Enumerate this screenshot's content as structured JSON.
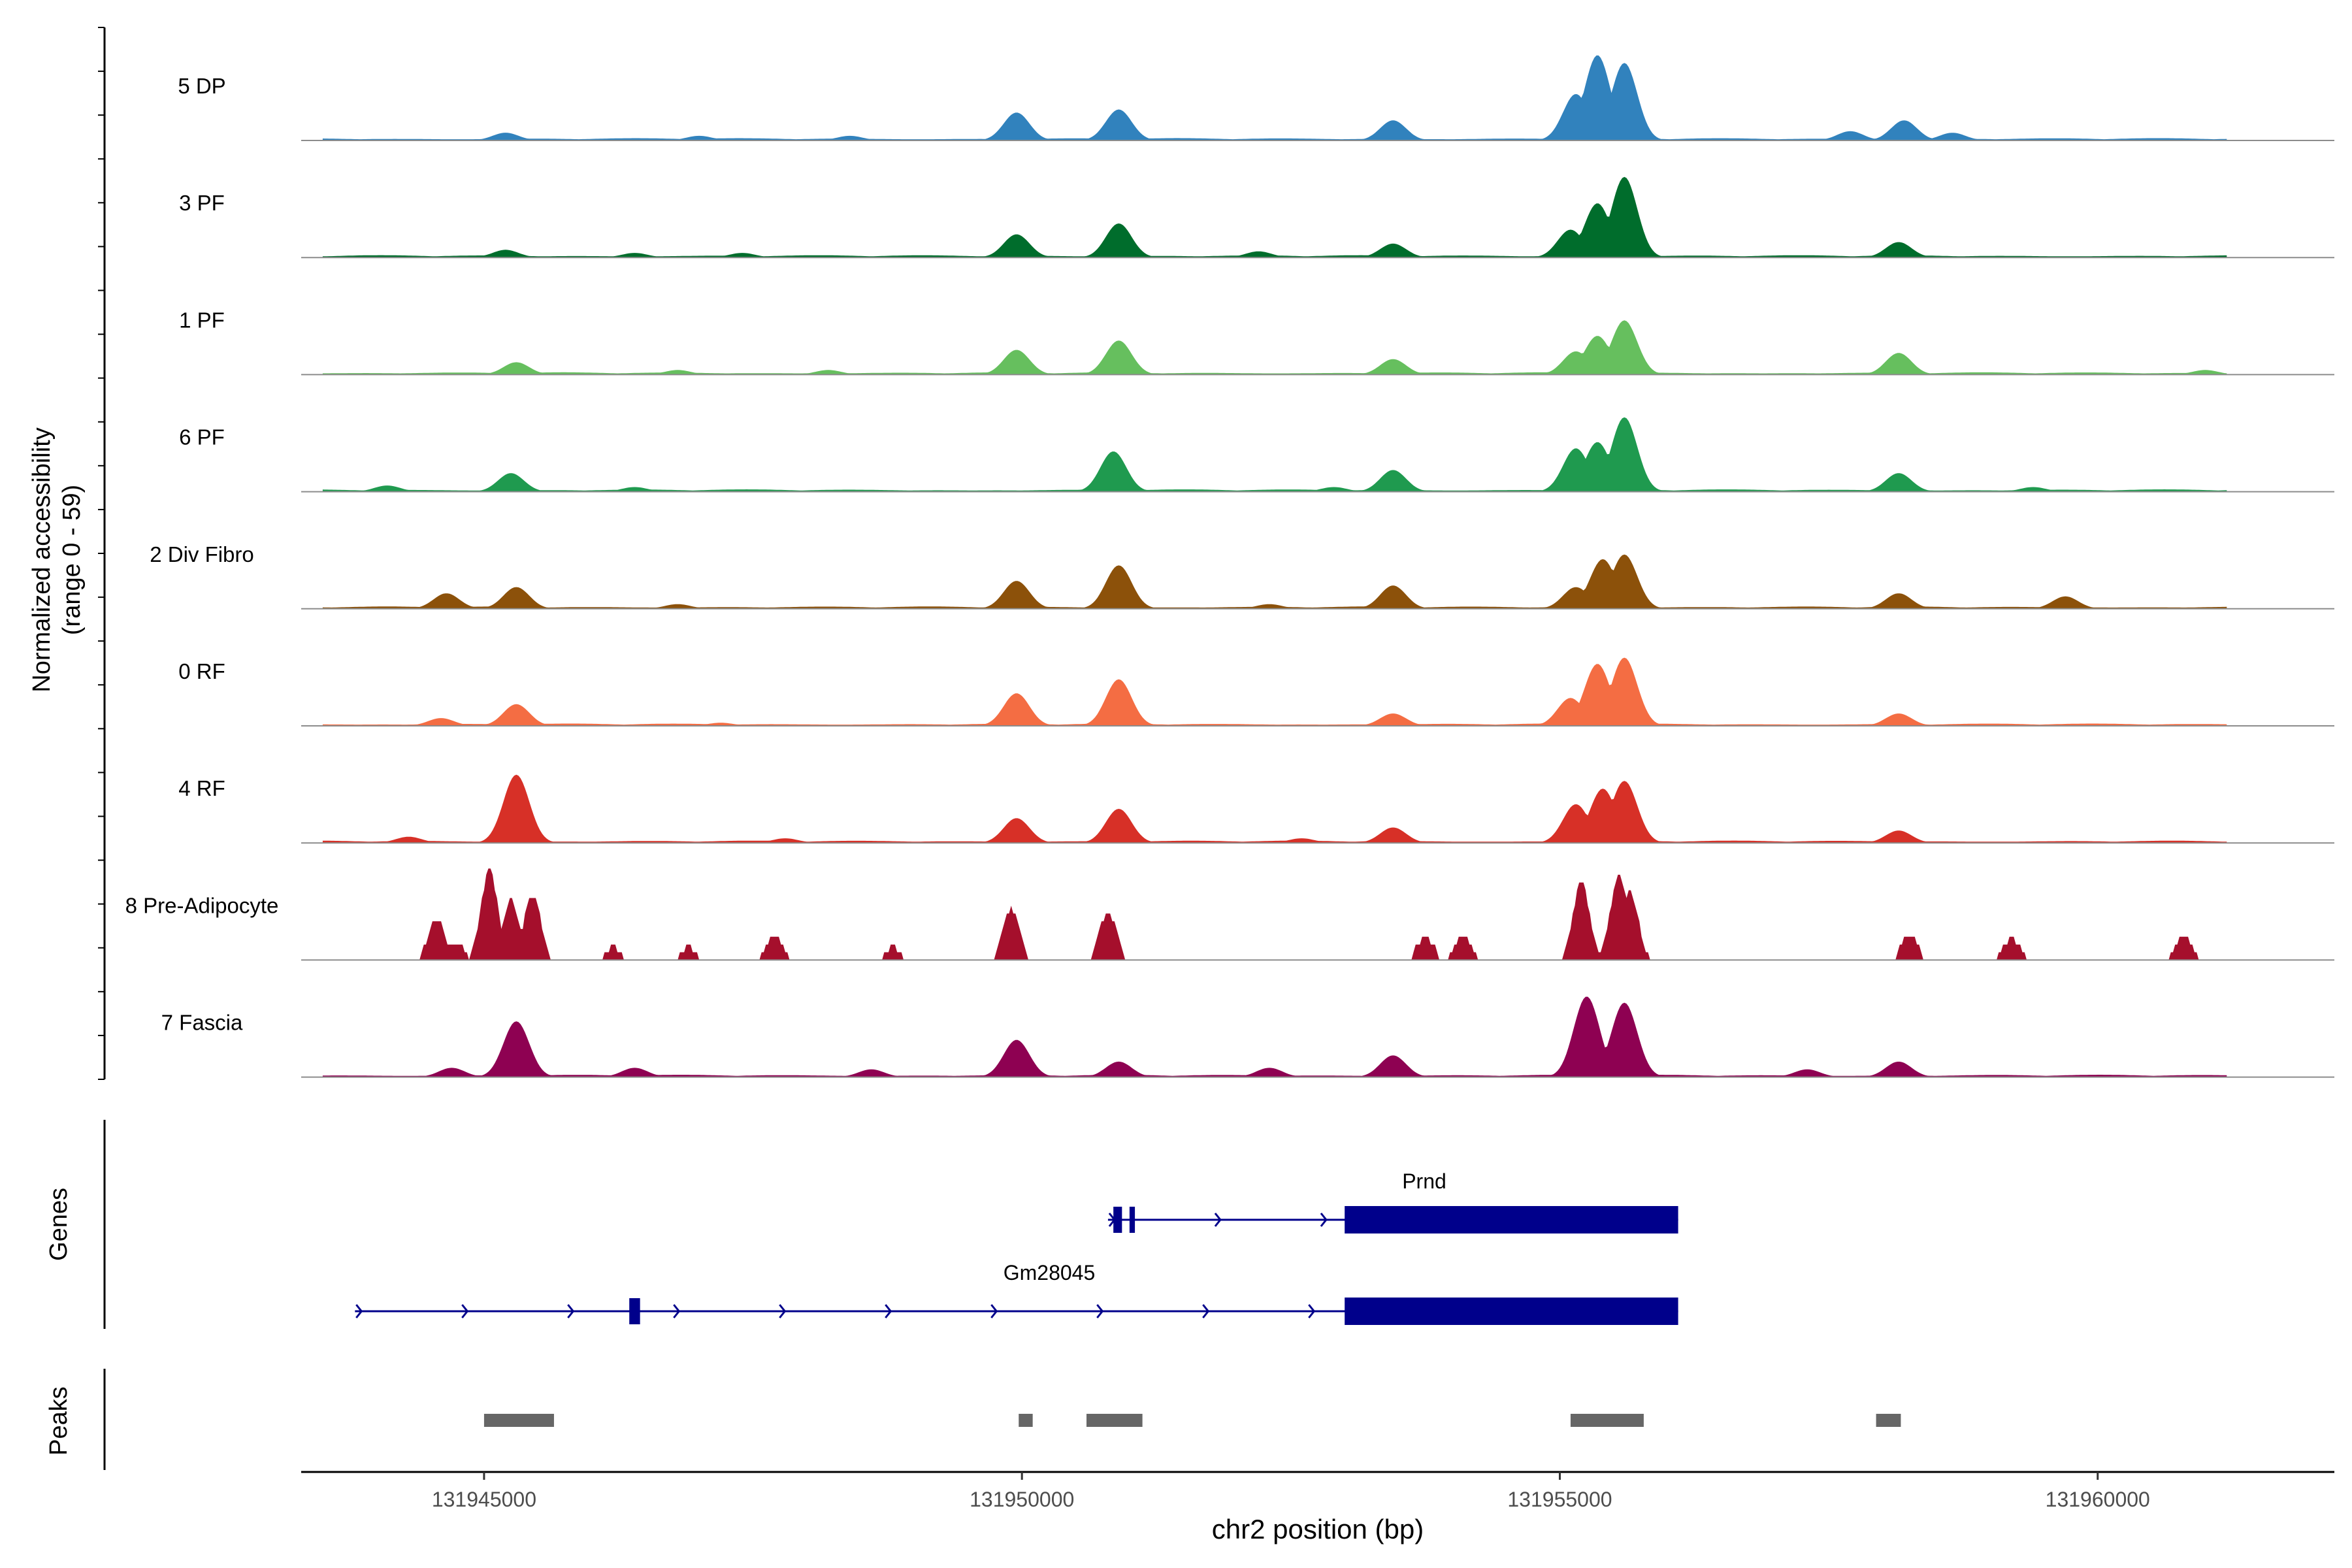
{
  "chart_data": {
    "type": "area",
    "title": "",
    "ylabel_line1": "Normalized accessibility",
    "ylabel_line2": "(range 0 - 59)",
    "xlabel": "chr2 position (bp)",
    "xlim": [
      131943300,
      131962200
    ],
    "ylim": [
      0,
      59
    ],
    "x_ticks": [
      131945000,
      131950000,
      131955000,
      131960000
    ],
    "x_tick_labels": [
      "131945000",
      "131950000",
      "131955000",
      "131960000"
    ],
    "tracks": [
      {
        "name": "5 DP",
        "color": "#3182bd",
        "peaks": [
          [
            131945200,
            5
          ],
          [
            131949950,
            18
          ],
          [
            131950900,
            20
          ],
          [
            131953450,
            13
          ],
          [
            131955150,
            30
          ],
          [
            131955350,
            55
          ],
          [
            131955600,
            50
          ],
          [
            131958200,
            13
          ],
          [
            131957700,
            6
          ],
          [
            131958650,
            5
          ],
          [
            131947000,
            3
          ],
          [
            131948400,
            3
          ]
        ]
      },
      {
        "name": "3 PF",
        "color": "#006d2c",
        "peaks": [
          [
            131945200,
            5
          ],
          [
            131949950,
            15
          ],
          [
            131950900,
            22
          ],
          [
            131953450,
            9
          ],
          [
            131955100,
            18
          ],
          [
            131955350,
            35
          ],
          [
            131955600,
            52
          ],
          [
            131958150,
            10
          ],
          [
            131946400,
            3
          ],
          [
            131947400,
            3
          ],
          [
            131952200,
            4
          ]
        ]
      },
      {
        "name": "1 PF",
        "color": "#66bf5e",
        "peaks": [
          [
            131945300,
            8
          ],
          [
            131949950,
            16
          ],
          [
            131950900,
            22
          ],
          [
            131953450,
            10
          ],
          [
            131955150,
            15
          ],
          [
            131955350,
            25
          ],
          [
            131955600,
            35
          ],
          [
            131958150,
            14
          ],
          [
            131961000,
            3
          ],
          [
            131946800,
            3
          ],
          [
            131948200,
            3
          ]
        ]
      },
      {
        "name": "6 PF",
        "color": "#1f9a4f",
        "peaks": [
          [
            131945250,
            12
          ],
          [
            131950850,
            26
          ],
          [
            131953450,
            14
          ],
          [
            131955150,
            28
          ],
          [
            131955350,
            32
          ],
          [
            131955600,
            48
          ],
          [
            131958150,
            12
          ],
          [
            131944100,
            4
          ],
          [
            131946400,
            3
          ],
          [
            131952900,
            3
          ],
          [
            131959400,
            3
          ]
        ]
      },
      {
        "name": "2 Div Fibro",
        "color": "#8c510a",
        "peaks": [
          [
            131944650,
            10
          ],
          [
            131945300,
            14
          ],
          [
            131949950,
            18
          ],
          [
            131950900,
            28
          ],
          [
            131953450,
            15
          ],
          [
            131955150,
            14
          ],
          [
            131955400,
            32
          ],
          [
            131955600,
            35
          ],
          [
            131958150,
            10
          ],
          [
            131959700,
            8
          ],
          [
            131946800,
            3
          ],
          [
            131952300,
            3
          ]
        ]
      },
      {
        "name": "0 RF",
        "color": "#f46d43",
        "peaks": [
          [
            131945300,
            14
          ],
          [
            131949950,
            21
          ],
          [
            131950900,
            30
          ],
          [
            131953450,
            8
          ],
          [
            131955100,
            18
          ],
          [
            131955350,
            40
          ],
          [
            131955600,
            44
          ],
          [
            131958150,
            8
          ],
          [
            131944600,
            5
          ],
          [
            131947200,
            2
          ]
        ]
      },
      {
        "name": "4 RF",
        "color": "#d73027",
        "peaks": [
          [
            131945300,
            44
          ],
          [
            131949950,
            16
          ],
          [
            131950900,
            22
          ],
          [
            131953450,
            10
          ],
          [
            131955150,
            25
          ],
          [
            131955400,
            35
          ],
          [
            131955600,
            40
          ],
          [
            131958150,
            8
          ],
          [
            131944300,
            4
          ],
          [
            131947800,
            3
          ],
          [
            131952600,
            3
          ]
        ]
      },
      {
        "name": "8 Pre-Adipocyte",
        "color": "#a50f2c",
        "peaks": [
          [
            131944560,
            27
          ],
          [
            131944750,
            10
          ],
          [
            131945050,
            58
          ],
          [
            131945250,
            38
          ],
          [
            131945450,
            42
          ],
          [
            131949900,
            33
          ],
          [
            131950800,
            31
          ],
          [
            131953750,
            15
          ],
          [
            131954100,
            15
          ],
          [
            131955200,
            50
          ],
          [
            131955550,
            55
          ],
          [
            131955650,
            45
          ],
          [
            131958250,
            16
          ],
          [
            131959200,
            14
          ],
          [
            131960800,
            16
          ],
          [
            131946200,
            8
          ],
          [
            131946900,
            8
          ],
          [
            131947700,
            15
          ],
          [
            131948800,
            8
          ]
        ]
      },
      {
        "name": "7 Fascia",
        "color": "#8e0152",
        "peaks": [
          [
            131945300,
            36
          ],
          [
            131949950,
            24
          ],
          [
            131950900,
            10
          ],
          [
            131953450,
            14
          ],
          [
            131955250,
            52
          ],
          [
            131955600,
            48
          ],
          [
            131958150,
            10
          ],
          [
            131944700,
            6
          ],
          [
            131946400,
            6
          ],
          [
            131948600,
            5
          ],
          [
            131952300,
            6
          ],
          [
            131957300,
            5
          ]
        ]
      }
    ]
  },
  "genes_panel": {
    "axis_label": "Genes",
    "genes": [
      {
        "name": "Prnd",
        "start": 131950800,
        "end": 131956100,
        "strand": "+",
        "exons": [
          [
            131950850,
            131950930
          ],
          [
            131951000,
            131951050
          ],
          [
            131953000,
            131956100
          ]
        ]
      },
      {
        "name": "Gm28045",
        "start": 131943800,
        "end": 131956100,
        "strand": "+",
        "exons": [
          [
            131946350,
            131946450
          ],
          [
            131953000,
            131956100
          ]
        ]
      }
    ]
  },
  "peaks_panel": {
    "axis_label": "Peaks",
    "regions": [
      [
        131945000,
        131945650
      ],
      [
        131949970,
        131950100
      ],
      [
        131950600,
        131951120
      ],
      [
        131955100,
        131955780
      ],
      [
        131957940,
        131958170
      ]
    ]
  }
}
